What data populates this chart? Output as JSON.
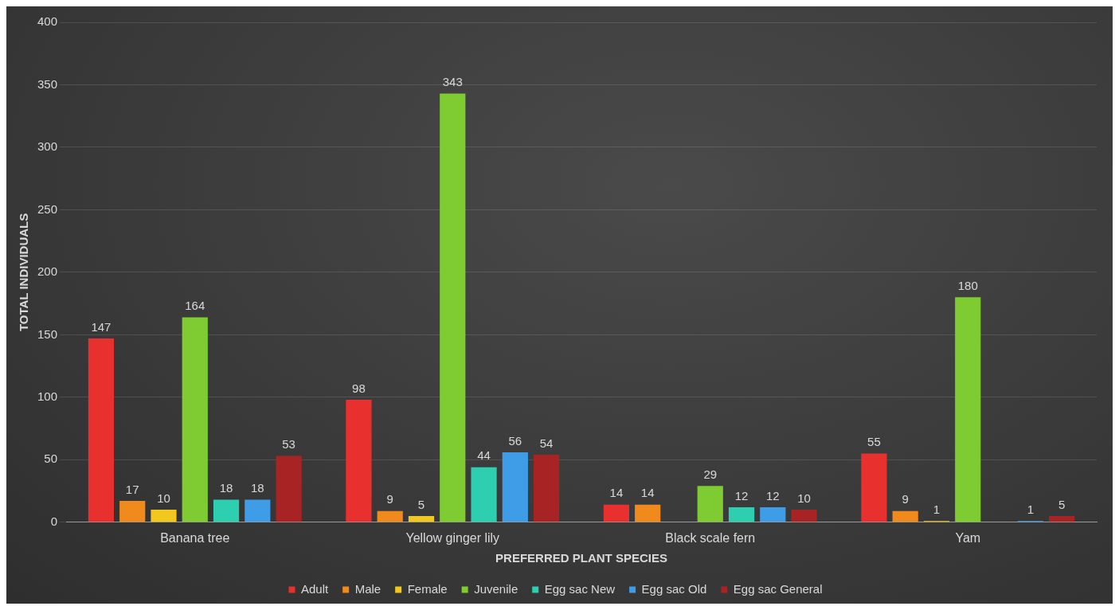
{
  "chart_data": {
    "type": "bar",
    "xlabel": "PREFERRED PLANT SPECIES",
    "ylabel": "TOTAL INDIVIDUALS",
    "categories": [
      "Banana tree",
      "Yellow ginger lily",
      "Black scale fern",
      "Yam"
    ],
    "series": [
      {
        "name": "Adult",
        "color": "#e8302e",
        "values": [
          147,
          98,
          14,
          55
        ]
      },
      {
        "name": "Male",
        "color": "#f08a1c",
        "values": [
          17,
          9,
          14,
          9
        ]
      },
      {
        "name": "Female",
        "color": "#f2c81e",
        "values": [
          10,
          5,
          null,
          1
        ]
      },
      {
        "name": "Juvenile",
        "color": "#7fcc32",
        "values": [
          164,
          343,
          29,
          180
        ]
      },
      {
        "name": "Egg sac New",
        "color": "#2ecfb0",
        "values": [
          18,
          44,
          12,
          null
        ]
      },
      {
        "name": "Egg sac Old",
        "color": "#3f9de8",
        "values": [
          18,
          56,
          12,
          1
        ]
      },
      {
        "name": "Egg sac General",
        "color": "#a82424",
        "values": [
          53,
          54,
          10,
          5
        ]
      }
    ],
    "ylim": [
      0,
      400
    ],
    "yticks": [
      0,
      50,
      100,
      150,
      200,
      250,
      300,
      350,
      400
    ],
    "grid": "y",
    "legend": "bottom",
    "data_labels": true
  }
}
